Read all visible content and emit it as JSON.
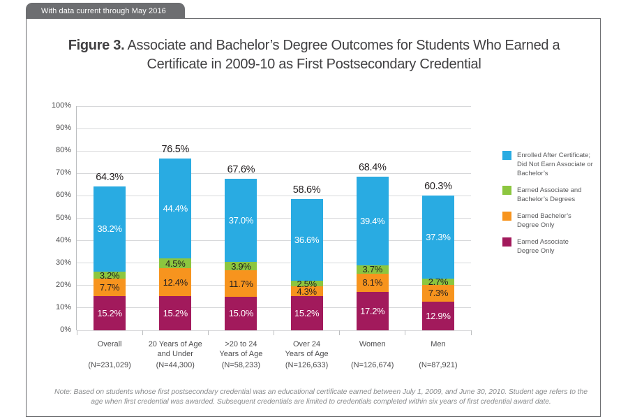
{
  "banner": {
    "text": "With data current through May 2016"
  },
  "title": {
    "prefix": "Figure 3.",
    "rest": " Associate and Bachelor’s Degree Outcomes for Students Who Earned a Certificate in 2009-10 as First Postsecondary Credential"
  },
  "chart_data": {
    "type": "bar",
    "subtype": "stacked-vertical",
    "y_axis": {
      "min": 0,
      "max": 100,
      "step": 10,
      "tick_suffix": "%",
      "grid": true
    },
    "categories": [
      {
        "label_lines": [
          "Overall"
        ],
        "n_label": "(N=231,029)"
      },
      {
        "label_lines": [
          "20 Years of Age",
          "and Under"
        ],
        "n_label": "(N=44,300)"
      },
      {
        "label_lines": [
          ">20 to 24",
          "Years of Age"
        ],
        "n_label": "(N=58,233)"
      },
      {
        "label_lines": [
          "Over 24",
          "Years of Age"
        ],
        "n_label": "(N=126,633)"
      },
      {
        "label_lines": [
          "Women"
        ],
        "n_label": "(N=126,674)"
      },
      {
        "label_lines": [
          "Men"
        ],
        "n_label": "(N=87,921)"
      }
    ],
    "series": [
      {
        "name": "Earned Associate Degree Only",
        "color": "#A21A5C",
        "label_color": "#FFFFFF",
        "values": [
          15.2,
          15.2,
          15.0,
          15.2,
          17.2,
          12.9
        ]
      },
      {
        "name": "Earned Bachelor's Degree Only",
        "color": "#F7941E",
        "label_color": "#231F20",
        "values": [
          7.7,
          12.4,
          11.7,
          4.3,
          8.1,
          7.3
        ]
      },
      {
        "name": "Earned Associate and Bachelor's Degrees",
        "color": "#8CC63F",
        "label_color": "#231F20",
        "values": [
          3.2,
          4.5,
          3.9,
          2.5,
          3.7,
          2.7
        ]
      },
      {
        "name": "Enrolled After Certificate; Did Not Earn Associate or Bachelor's",
        "color": "#29ABE2",
        "label_color": "#FFFFFF",
        "values": [
          38.2,
          44.4,
          37.0,
          36.6,
          39.4,
          37.3
        ]
      }
    ],
    "totals": [
      64.3,
      76.5,
      67.6,
      58.6,
      68.4,
      60.3
    ],
    "legend_position": "right"
  },
  "legend": {
    "items": [
      {
        "label": "Enrolled After Certificate;\nDid Not Earn Associate or\nBachelor’s",
        "color": "#29ABE2"
      },
      {
        "label": "Earned Associate and\nBachelor’s Degrees",
        "color": "#8CC63F"
      },
      {
        "label": "Earned Bachelor’s\nDegree Only",
        "color": "#F7941E"
      },
      {
        "label": "Earned Associate\nDegree Only",
        "color": "#A21A5C"
      }
    ]
  },
  "note": {
    "text": "Note: Based on students whose first postsecondary credential was an educational certificate earned between July 1, 2009, and June 30, 2010. Student age refers to the age when first credential was awarded. Subsequent credentials are limited to credentials completed within six years of first credential award date."
  }
}
